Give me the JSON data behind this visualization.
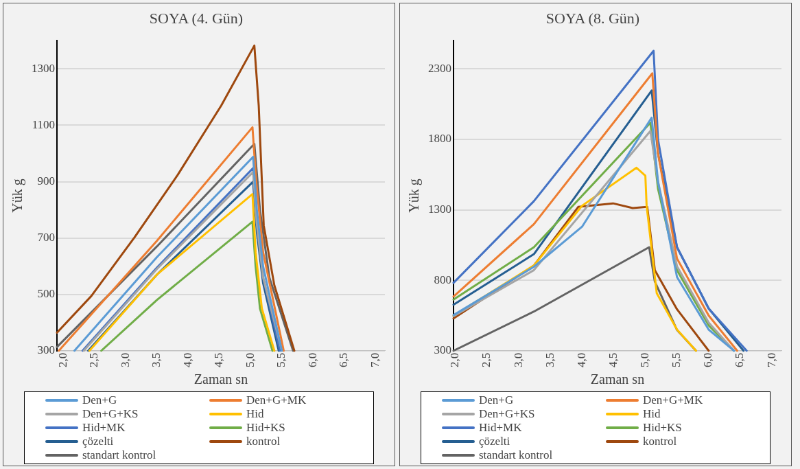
{
  "chart_data": [
    {
      "type": "line",
      "title": "SOYA (4. Gün)",
      "xlabel": "Zaman sn",
      "ylabel": "Yük g",
      "xlim": [
        1.9,
        7.15
      ],
      "ylim": [
        300,
        1400
      ],
      "xticks": [
        {
          "value": 2,
          "label": "2,0"
        },
        {
          "value": 2.5,
          "label": "2,5"
        },
        {
          "value": 3,
          "label": "3,0"
        },
        {
          "value": 3.5,
          "label": "3,5"
        },
        {
          "value": 4,
          "label": "4,0"
        },
        {
          "value": 4.5,
          "label": "4,5"
        },
        {
          "value": 5,
          "label": "5,0"
        },
        {
          "value": 5.5,
          "label": "5,5"
        },
        {
          "value": 6,
          "label": "6,0"
        },
        {
          "value": 6.5,
          "label": "6,5"
        },
        {
          "value": 7,
          "label": "7,0"
        }
      ],
      "yticks": [
        300,
        500,
        700,
        900,
        1100,
        1300
      ],
      "grid": "y",
      "legend": "bottom",
      "marker": "none",
      "line_style": "solid",
      "series": [
        {
          "name": "Den+G",
          "color": "#5b9bd5",
          "x": [
            2.18,
            3.5,
            5.04,
            5.1,
            5.2,
            5.5
          ],
          "values": [
            300,
            632,
            988,
            800,
            600,
            300
          ]
        },
        {
          "name": "Den+G+MK",
          "color": "#ed7d31",
          "x": [
            1.93,
            3.5,
            5.03,
            5.09,
            5.2,
            5.53
          ],
          "values": [
            300,
            690,
            1093,
            900,
            650,
            300
          ]
        },
        {
          "name": "Den+G+KS",
          "color": "#a5a5a5",
          "x": [
            2.33,
            3.5,
            5.04,
            5.1,
            5.2,
            5.5
          ],
          "values": [
            300,
            590,
            934,
            750,
            560,
            300
          ]
        },
        {
          "name": "Hid",
          "color": "#ffc000",
          "x": [
            2.42,
            3.5,
            5.03,
            5.08,
            5.18,
            5.38
          ],
          "values": [
            300,
            570,
            856,
            650,
            450,
            300
          ]
        },
        {
          "name": "Hid+MK",
          "color": "#4472c4",
          "x": [
            2.31,
            3.5,
            5.04,
            5.1,
            5.2,
            5.47
          ],
          "values": [
            300,
            595,
            948,
            750,
            560,
            300
          ]
        },
        {
          "name": "Hid+KS",
          "color": "#70ad47",
          "x": [
            2.61,
            3.5,
            5.03,
            5.08,
            5.15,
            5.35
          ],
          "values": [
            300,
            480,
            758,
            600,
            450,
            300
          ]
        },
        {
          "name": "çözelti",
          "color": "#255e91",
          "x": [
            2.4,
            3.5,
            5.04,
            5.1,
            5.2,
            5.45
          ],
          "values": [
            300,
            570,
            900,
            720,
            540,
            300
          ]
        },
        {
          "name": "kontrol",
          "color": "#9e480e",
          "x": [
            1.9,
            2.45,
            3.14,
            3.83,
            4.53,
            5.06,
            5.13,
            5.21,
            5.38,
            5.7
          ],
          "values": [
            364,
            494,
            702,
            923,
            1170,
            1383,
            1170,
            745,
            532,
            300
          ]
        },
        {
          "name": "standart kontrol",
          "color": "#636363",
          "x": [
            1.9,
            3.5,
            5.06,
            5.15,
            5.3,
            5.68
          ],
          "values": [
            313,
            670,
            1034,
            800,
            560,
            300
          ]
        }
      ]
    },
    {
      "type": "line",
      "title": "SOYA (8. Gün)",
      "xlabel": "Zaman sn",
      "ylabel": "Yük g",
      "xlim": [
        1.97,
        7.15
      ],
      "ylim": [
        300,
        2500
      ],
      "xticks": [
        {
          "value": 2,
          "label": "2,0"
        },
        {
          "value": 2.5,
          "label": "2,5"
        },
        {
          "value": 3,
          "label": "3,0"
        },
        {
          "value": 3.5,
          "label": "3,5"
        },
        {
          "value": 4,
          "label": "4,0"
        },
        {
          "value": 4.5,
          "label": "4,5"
        },
        {
          "value": 5,
          "label": "5,0"
        },
        {
          "value": 5.5,
          "label": "5,5"
        },
        {
          "value": 6,
          "label": "6,0"
        },
        {
          "value": 6.5,
          "label": "6,5"
        },
        {
          "value": 7,
          "label": "7,0"
        }
      ],
      "yticks": [
        300,
        800,
        1300,
        1800,
        2300
      ],
      "grid": "y",
      "legend": "bottom",
      "marker": "none",
      "line_style": "solid",
      "series": [
        {
          "name": "Den+G",
          "color": "#5b9bd5",
          "x": [
            1.97,
            3.24,
            4.0,
            5.1,
            5.2,
            5.5,
            6.0,
            6.4
          ],
          "values": [
            553,
            896,
            1180,
            1954,
            1500,
            823,
            450,
            300
          ]
        },
        {
          "name": "Den+G+MK",
          "color": "#ed7d31",
          "x": [
            1.97,
            3.24,
            5.11,
            5.2,
            5.5,
            6.0,
            6.45
          ],
          "values": [
            684,
            1199,
            2269,
            1700,
            954,
            550,
            300
          ]
        },
        {
          "name": "Den+G+KS",
          "color": "#a5a5a5",
          "x": [
            1.97,
            3.24,
            5.08,
            5.2,
            5.5,
            6.0,
            6.4
          ],
          "values": [
            545,
            872,
            1860,
            1500,
            900,
            500,
            300
          ]
        },
        {
          "name": "Hid",
          "color": "#ffc000",
          "x": [
            1.97,
            3.24,
            4.0,
            4.86,
            5.0,
            5.02,
            5.18,
            5.5,
            5.8
          ],
          "values": [
            548,
            905,
            1329,
            1599,
            1542,
            1329,
            708,
            450,
            300
          ]
        },
        {
          "name": "Hid+MK",
          "color": "#4472c4",
          "x": [
            1.97,
            3.24,
            5.13,
            5.2,
            5.5,
            6.0,
            6.6
          ],
          "values": [
            782,
            1362,
            2429,
            1800,
            1035,
            600,
            300
          ]
        },
        {
          "name": "Hid+KS",
          "color": "#70ad47",
          "x": [
            1.97,
            3.24,
            5.08,
            5.2,
            5.5,
            6.0,
            6.4
          ],
          "values": [
            663,
            1035,
            1918,
            1450,
            872,
            480,
            300
          ]
        },
        {
          "name": "çözelti",
          "color": "#255e91",
          "x": [
            1.97,
            3.24,
            5.1,
            5.2,
            5.5,
            6.0,
            6.55
          ],
          "values": [
            627,
            986,
            2147,
            1700,
            1035,
            600,
            300
          ]
        },
        {
          "name": "kontrol",
          "color": "#9e480e",
          "x": [
            1.97,
            3.24,
            3.94,
            4.49,
            4.8,
            5.03,
            5.15,
            5.5,
            6.0
          ],
          "values": [
            529,
            905,
            1321,
            1346,
            1313,
            1321,
            872,
            594,
            300
          ]
        },
        {
          "name": "standart kontrol",
          "color": "#636363",
          "x": [
            1.97,
            3.24,
            5.06,
            5.15,
            5.5,
            5.8
          ],
          "values": [
            300,
            578,
            1035,
            790,
            447,
            300
          ]
        }
      ]
    }
  ]
}
